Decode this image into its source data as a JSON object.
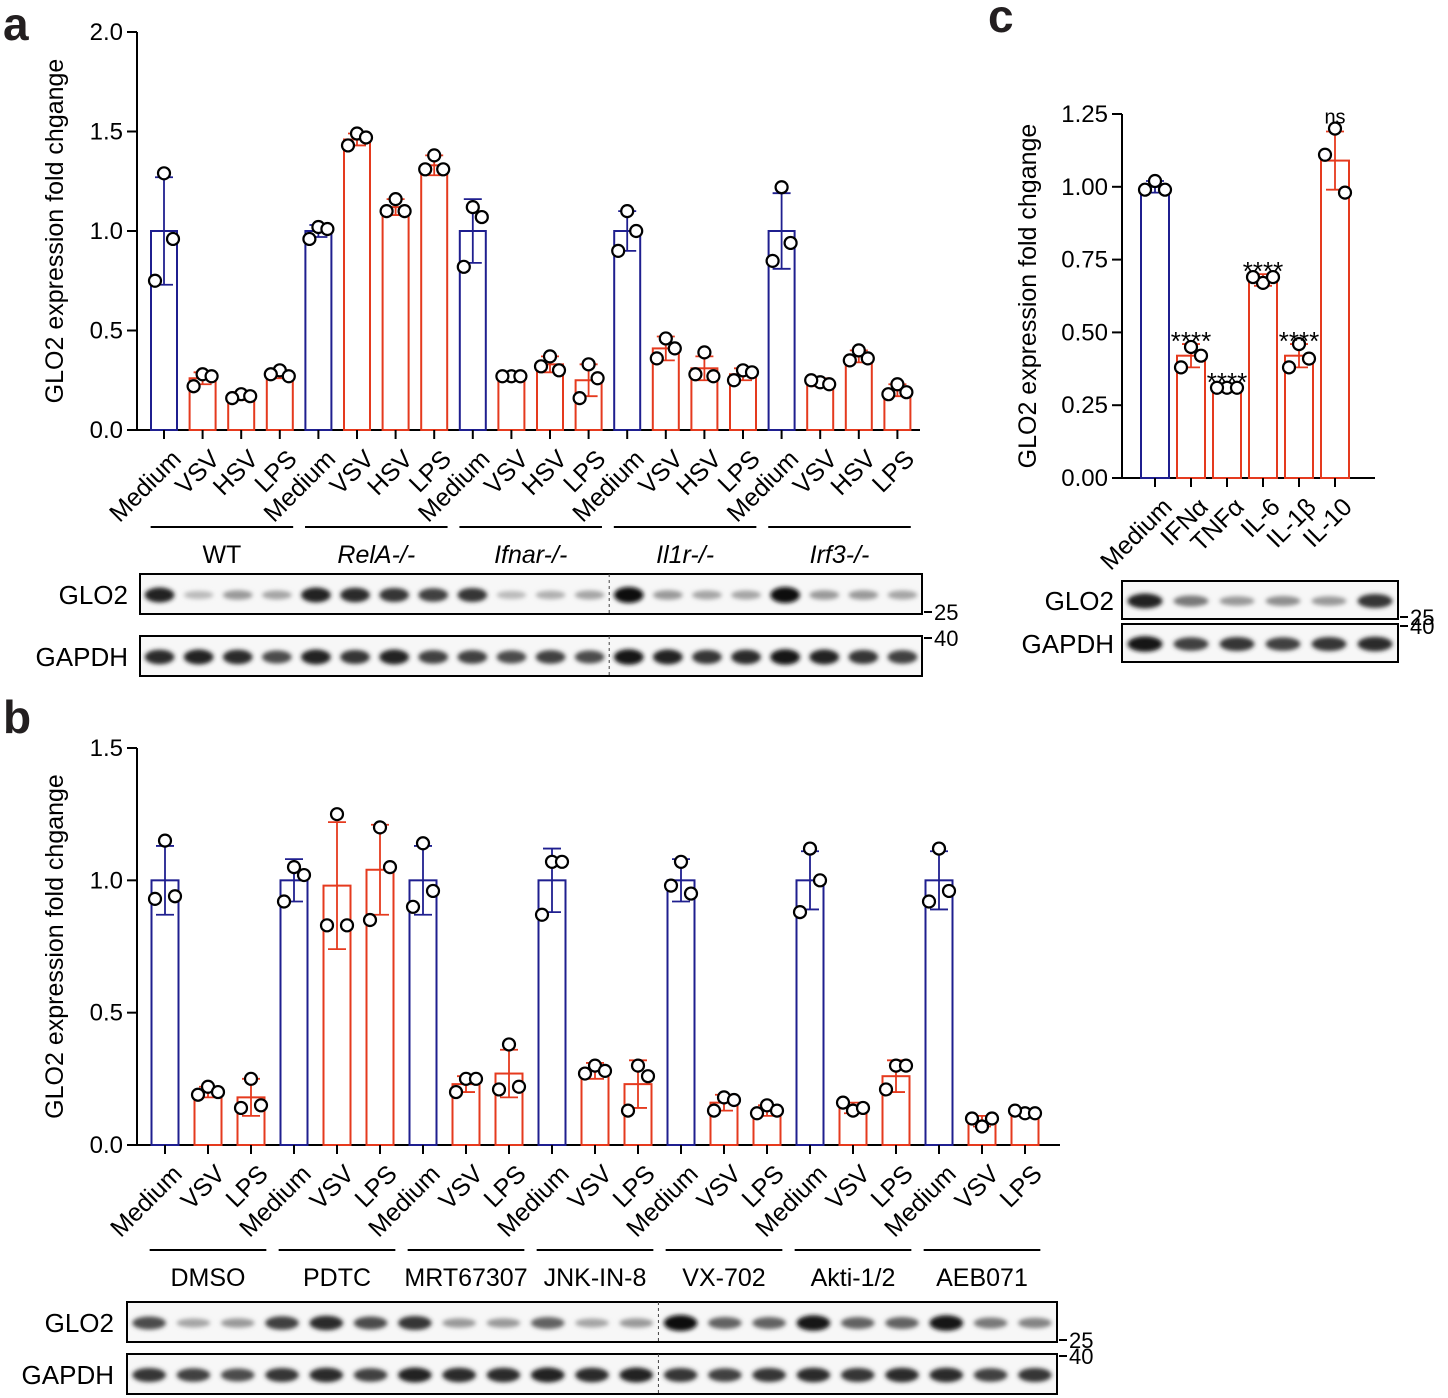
{
  "panels": {
    "a": {
      "letter": "a",
      "chart_data": {
        "type": "bar",
        "ylabel": "GLO2 expression fold chgange",
        "ylim": [
          0,
          2.0
        ],
        "yticks": [
          "0.0",
          "0.5",
          "1.0",
          "1.5",
          "2.0"
        ],
        "categories": [
          "Medium",
          "VSV",
          "HSV",
          "LPS",
          "Medium",
          "VSV",
          "HSV",
          "LPS",
          "Medium",
          "VSV",
          "HSV",
          "LPS",
          "Medium",
          "VSV",
          "HSV",
          "LPS",
          "Medium",
          "VSV",
          "HSV",
          "LPS"
        ],
        "groups": [
          {
            "label": "WT",
            "italic": false,
            "size": 4
          },
          {
            "label": "RelA-/-",
            "italic": true,
            "size": 4
          },
          {
            "label": "Ifnar-/-",
            "italic": true,
            "size": 4
          },
          {
            "label": "Il1r-/-",
            "italic": true,
            "size": 4
          },
          {
            "label": "Irf3-/-",
            "italic": true,
            "size": 4
          }
        ],
        "values": [
          1.0,
          0.26,
          0.17,
          0.28,
          1.0,
          1.46,
          1.12,
          1.33,
          1.0,
          0.27,
          0.33,
          0.25,
          1.0,
          0.41,
          0.31,
          0.28,
          1.0,
          0.24,
          0.37,
          0.2
        ],
        "errors": [
          0.27,
          0.03,
          0.02,
          0.02,
          0.03,
          0.03,
          0.04,
          0.05,
          0.16,
          0.01,
          0.04,
          0.08,
          0.1,
          0.06,
          0.06,
          0.03,
          0.19,
          0.02,
          0.03,
          0.03
        ],
        "points": [
          [
            1.29,
            0.75,
            0.96
          ],
          [
            0.28,
            0.22,
            0.27
          ],
          [
            0.18,
            0.16,
            0.17
          ],
          [
            0.3,
            0.28,
            0.27
          ],
          [
            1.02,
            0.96,
            1.01
          ],
          [
            1.49,
            1.43,
            1.47
          ],
          [
            1.16,
            1.1,
            1.1
          ],
          [
            1.38,
            1.31,
            1.31
          ],
          [
            1.12,
            0.82,
            1.07
          ],
          [
            0.27,
            0.27,
            0.27
          ],
          [
            0.37,
            0.32,
            0.3
          ],
          [
            0.33,
            0.16,
            0.26
          ],
          [
            1.1,
            0.9,
            1.0
          ],
          [
            0.46,
            0.36,
            0.41
          ],
          [
            0.39,
            0.28,
            0.27
          ],
          [
            0.3,
            0.25,
            0.29
          ],
          [
            1.22,
            0.85,
            0.94
          ],
          [
            0.24,
            0.25,
            0.23
          ],
          [
            0.4,
            0.35,
            0.36
          ],
          [
            0.23,
            0.18,
            0.19
          ]
        ],
        "colors": [
          "#1f1f8f",
          "#e53a1e",
          "#e53a1e",
          "#e53a1e",
          "#1f1f8f",
          "#e53a1e",
          "#e53a1e",
          "#e53a1e",
          "#1f1f8f",
          "#e53a1e",
          "#e53a1e",
          "#e53a1e",
          "#1f1f8f",
          "#e53a1e",
          "#e53a1e",
          "#e53a1e",
          "#1f1f8f",
          "#e53a1e",
          "#e53a1e",
          "#e53a1e"
        ]
      },
      "blots": [
        {
          "label": "GLO2",
          "mw": "25",
          "intensity": [
            0.9,
            0.2,
            0.35,
            0.3,
            0.9,
            0.85,
            0.8,
            0.75,
            0.8,
            0.2,
            0.25,
            0.3,
            1.0,
            0.35,
            0.3,
            0.3,
            1.0,
            0.35,
            0.35,
            0.3
          ]
        },
        {
          "label": "GAPDH",
          "mw": "40",
          "intensity": [
            0.85,
            0.9,
            0.85,
            0.7,
            0.9,
            0.8,
            0.9,
            0.75,
            0.75,
            0.7,
            0.75,
            0.7,
            0.95,
            0.9,
            0.8,
            0.85,
            0.95,
            0.9,
            0.8,
            0.75
          ]
        }
      ]
    },
    "b": {
      "letter": "b",
      "chart_data": {
        "type": "bar",
        "ylabel": "GLO2 expression fold chgange",
        "ylim": [
          0,
          1.5
        ],
        "yticks": [
          "0.0",
          "0.5",
          "1.0",
          "1.5"
        ],
        "categories": [
          "Medium",
          "VSV",
          "LPS",
          "Medium",
          "VSV",
          "LPS",
          "Medium",
          "VSV",
          "LPS",
          "Medium",
          "VSV",
          "LPS",
          "Medium",
          "VSV",
          "LPS",
          "Medium",
          "VSV",
          "LPS",
          "Medium",
          "VSV",
          "LPS"
        ],
        "groups": [
          {
            "label": "DMSO",
            "italic": false,
            "size": 3
          },
          {
            "label": "PDTC",
            "italic": false,
            "size": 3
          },
          {
            "label": "MRT67307",
            "italic": false,
            "size": 3
          },
          {
            "label": "JNK-IN-8",
            "italic": false,
            "size": 3
          },
          {
            "label": "VX-702",
            "italic": false,
            "size": 3
          },
          {
            "label": "Akti-1/2",
            "italic": false,
            "size": 3
          },
          {
            "label": "AEB071",
            "italic": false,
            "size": 3
          }
        ],
        "values": [
          1.0,
          0.2,
          0.18,
          1.0,
          0.98,
          1.04,
          1.0,
          0.23,
          0.27,
          1.0,
          0.28,
          0.23,
          1.0,
          0.16,
          0.13,
          1.0,
          0.14,
          0.26,
          1.0,
          0.09,
          0.12
        ],
        "errors": [
          0.13,
          0.02,
          0.07,
          0.08,
          0.24,
          0.17,
          0.13,
          0.03,
          0.09,
          0.12,
          0.03,
          0.09,
          0.08,
          0.03,
          0.02,
          0.11,
          0.02,
          0.06,
          0.11,
          0.02,
          0.01
        ],
        "points": [
          [
            1.15,
            0.93,
            0.94
          ],
          [
            0.22,
            0.19,
            0.2
          ],
          [
            0.25,
            0.14,
            0.15
          ],
          [
            1.05,
            0.92,
            1.02
          ],
          [
            1.25,
            0.83,
            0.83
          ],
          [
            1.2,
            0.85,
            1.05
          ],
          [
            1.14,
            0.9,
            0.96
          ],
          [
            0.25,
            0.2,
            0.25
          ],
          [
            0.38,
            0.21,
            0.22
          ],
          [
            1.07,
            0.87,
            1.07
          ],
          [
            0.3,
            0.27,
            0.28
          ],
          [
            0.3,
            0.13,
            0.26
          ],
          [
            1.07,
            0.98,
            0.95
          ],
          [
            0.18,
            0.13,
            0.17
          ],
          [
            0.15,
            0.12,
            0.13
          ],
          [
            1.12,
            0.88,
            1.0
          ],
          [
            0.13,
            0.16,
            0.14
          ],
          [
            0.3,
            0.21,
            0.3
          ],
          [
            1.12,
            0.92,
            0.96
          ],
          [
            0.07,
            0.1,
            0.1
          ],
          [
            0.12,
            0.13,
            0.12
          ]
        ],
        "colors": [
          "#1f1f8f",
          "#e53a1e",
          "#e53a1e",
          "#1f1f8f",
          "#e53a1e",
          "#e53a1e",
          "#1f1f8f",
          "#e53a1e",
          "#e53a1e",
          "#1f1f8f",
          "#e53a1e",
          "#e53a1e",
          "#1f1f8f",
          "#e53a1e",
          "#e53a1e",
          "#1f1f8f",
          "#e53a1e",
          "#e53a1e",
          "#1f1f8f",
          "#e53a1e",
          "#e53a1e"
        ]
      },
      "blots": [
        {
          "label": "GLO2",
          "mw": "25",
          "intensity": [
            0.7,
            0.3,
            0.35,
            0.75,
            0.85,
            0.7,
            0.8,
            0.35,
            0.35,
            0.6,
            0.3,
            0.35,
            1.0,
            0.6,
            0.6,
            0.95,
            0.6,
            0.6,
            0.95,
            0.5,
            0.45
          ]
        },
        {
          "label": "GAPDH",
          "mw": "40",
          "intensity": [
            0.8,
            0.75,
            0.7,
            0.8,
            0.85,
            0.75,
            0.9,
            0.85,
            0.85,
            0.9,
            0.85,
            0.9,
            0.8,
            0.75,
            0.8,
            0.85,
            0.8,
            0.85,
            0.85,
            0.75,
            0.8
          ]
        }
      ]
    },
    "c": {
      "letter": "c",
      "chart_data": {
        "type": "bar",
        "ylabel": "GLO2 expression fold chgange",
        "ylim": [
          0,
          1.25
        ],
        "yticks": [
          "0.00",
          "0.25",
          "0.50",
          "0.75",
          "1.00",
          "1.25"
        ],
        "categories": [
          "Medium",
          "IFNα",
          "TNFα",
          "IL-6",
          "IL-1β",
          "IL-10"
        ],
        "values": [
          1.0,
          0.42,
          0.31,
          0.68,
          0.42,
          1.09
        ],
        "errors": [
          0.02,
          0.04,
          0.01,
          0.02,
          0.04,
          0.1
        ],
        "points": [
          [
            1.02,
            0.99,
            0.99
          ],
          [
            0.45,
            0.38,
            0.42
          ],
          [
            0.31,
            0.31,
            0.31
          ],
          [
            0.67,
            0.69,
            0.69
          ],
          [
            0.46,
            0.38,
            0.41
          ],
          [
            1.2,
            1.11,
            0.98
          ]
        ],
        "significance": [
          "",
          "****",
          "****",
          "****",
          "****",
          "ns"
        ],
        "colors": [
          "#1f1f8f",
          "#e53a1e",
          "#e53a1e",
          "#e53a1e",
          "#e53a1e",
          "#e53a1e"
        ]
      },
      "blots": [
        {
          "label": "GLO2",
          "mw": "25",
          "intensity": [
            0.9,
            0.5,
            0.35,
            0.4,
            0.35,
            0.8
          ]
        },
        {
          "label": "GAPDH",
          "mw": "40",
          "intensity": [
            0.95,
            0.75,
            0.8,
            0.75,
            0.8,
            0.85
          ]
        }
      ]
    }
  }
}
